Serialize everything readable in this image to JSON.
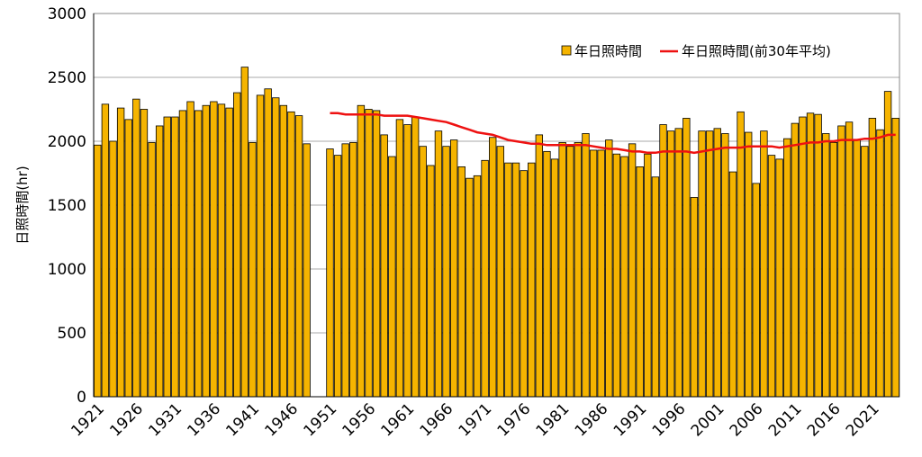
{
  "chart_data": {
    "type": "bar",
    "ylabel": "日照時間(hr)",
    "categories": [
      "1921",
      null,
      null,
      null,
      null,
      "1926",
      null,
      null,
      null,
      null,
      "1931",
      null,
      null,
      null,
      null,
      "1936",
      null,
      null,
      null,
      null,
      "1941",
      null,
      null,
      null,
      null,
      "1946",
      null,
      null,
      null,
      null,
      "1951",
      null,
      null,
      null,
      null,
      "1956",
      null,
      null,
      null,
      null,
      "1961",
      null,
      null,
      null,
      null,
      "1966",
      null,
      null,
      null,
      null,
      "1971",
      null,
      null,
      null,
      null,
      "1976",
      null,
      null,
      null,
      null,
      "1981",
      null,
      null,
      null,
      null,
      "1986",
      null,
      null,
      null,
      null,
      "1991",
      null,
      null,
      null,
      null,
      "1996",
      null,
      null,
      null,
      null,
      "2001",
      null,
      null,
      null,
      null,
      "2006",
      null,
      null,
      null,
      null,
      "2011",
      null,
      null,
      null,
      null,
      "2016",
      null,
      null,
      null,
      null,
      "2021",
      null,
      null,
      null
    ],
    "series": [
      {
        "name": "年日照時間",
        "type": "bar",
        "color": "#f5b400",
        "values": [
          1970,
          2290,
          2000,
          2260,
          2170,
          2330,
          2250,
          1990,
          2120,
          2190,
          2190,
          2240,
          2310,
          2240,
          2280,
          2310,
          2290,
          2260,
          2380,
          2580,
          1990,
          2360,
          2410,
          2340,
          2280,
          2230,
          2200,
          1980,
          null,
          null,
          1940,
          1890,
          1980,
          1990,
          2280,
          2250,
          2240,
          2050,
          1880,
          2170,
          2130,
          2190,
          1960,
          1810,
          2080,
          1960,
          2010,
          1800,
          1710,
          1730,
          1850,
          2030,
          1960,
          1830,
          1830,
          1770,
          1830,
          2050,
          1920,
          1860,
          1990,
          1960,
          1990,
          2060,
          1930,
          1930,
          2010,
          1900,
          1880,
          1980,
          1800,
          1900,
          1720,
          2130,
          2080,
          2100,
          2180,
          1560,
          2080,
          2080,
          2100,
          2060,
          1760,
          2230,
          2070,
          1670,
          2080,
          1890,
          1860,
          2020,
          2140,
          2190,
          2220,
          2210,
          2060,
          1990,
          2120,
          2150,
          2010,
          1960,
          2180,
          2090,
          2390,
          2180
        ]
      },
      {
        "name": "年日照時間(前30年平均)",
        "type": "line",
        "color": "#ee1111",
        "values": [
          null,
          null,
          null,
          null,
          null,
          null,
          null,
          null,
          null,
          null,
          null,
          null,
          null,
          null,
          null,
          null,
          null,
          null,
          null,
          null,
          null,
          null,
          null,
          null,
          null,
          null,
          null,
          null,
          null,
          null,
          2220,
          2220,
          2210,
          2210,
          2210,
          2210,
          2210,
          2200,
          2200,
          2200,
          2200,
          2190,
          2180,
          2170,
          2160,
          2150,
          2130,
          2110,
          2090,
          2070,
          2060,
          2050,
          2030,
          2010,
          2000,
          1990,
          1980,
          1980,
          1970,
          1970,
          1970,
          1970,
          1970,
          1970,
          1960,
          1950,
          1940,
          1940,
          1930,
          1920,
          1920,
          1910,
          1910,
          1920,
          1920,
          1920,
          1920,
          1910,
          1920,
          1930,
          1940,
          1950,
          1950,
          1950,
          1960,
          1960,
          1960,
          1960,
          1950,
          1960,
          1970,
          1980,
          1990,
          1990,
          2000,
          2000,
          2010,
          2010,
          2010,
          2020,
          2020,
          2030,
          2050,
          2050
        ]
      }
    ],
    "ylim": [
      0,
      3000
    ],
    "yticks": [
      0,
      500,
      1000,
      1500,
      2000,
      2500,
      3000
    ],
    "grid": true,
    "legend": "upper right"
  }
}
